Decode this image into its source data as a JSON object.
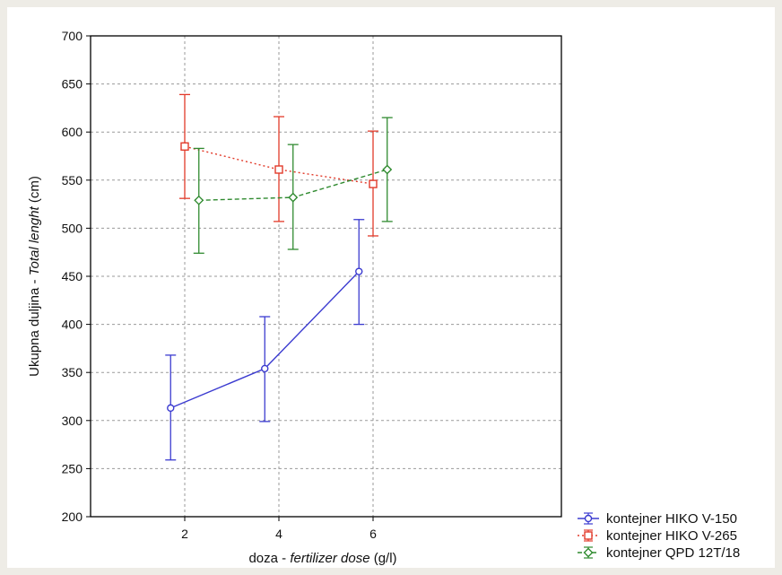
{
  "chart_data": {
    "type": "line",
    "title": "",
    "xlabel_plain": "doza - ",
    "xlabel_italic": "fertilizer dose",
    "xlabel_unit": " (g/l)",
    "ylabel_plain": "Ukupna duljina - ",
    "ylabel_italic": "Total lenght",
    "ylabel_unit": " (cm)",
    "x_ticks": [
      2,
      4,
      6
    ],
    "x_tick_labels": [
      "2",
      "4",
      "6"
    ],
    "xlim": [
      0,
      10
    ],
    "ylim": [
      200,
      700
    ],
    "y_ticks": [
      200,
      250,
      300,
      350,
      400,
      450,
      500,
      550,
      600,
      650,
      700
    ],
    "y_tick_labels": [
      "200",
      "250",
      "300",
      "350",
      "400",
      "450",
      "500",
      "550",
      "600",
      "650",
      "700"
    ],
    "grid": true,
    "legend_position": "bottom-right, outside plot",
    "series": [
      {
        "name": "kontejner HIKO V-150",
        "color": "#3b3bd0",
        "line_style": "solid",
        "marker": "circle",
        "x_offset": -0.3,
        "points": [
          {
            "x": 2,
            "y": 313,
            "lo": 259,
            "hi": 368
          },
          {
            "x": 4,
            "y": 354,
            "lo": 299,
            "hi": 408
          },
          {
            "x": 6,
            "y": 455,
            "lo": 400,
            "hi": 509
          }
        ]
      },
      {
        "name": "kontejner HIKO V-265",
        "color": "#e23a2a",
        "line_style": "dotted",
        "marker": "square",
        "x_offset": 0,
        "points": [
          {
            "x": 2,
            "y": 585,
            "lo": 531,
            "hi": 639
          },
          {
            "x": 4,
            "y": 561,
            "lo": 507,
            "hi": 616
          },
          {
            "x": 6,
            "y": 546,
            "lo": 492,
            "hi": 601
          }
        ]
      },
      {
        "name": "kontejner QPD 12T/18",
        "color": "#2f8a2f",
        "line_style": "dashed",
        "marker": "diamond",
        "x_offset": 0.3,
        "points": [
          {
            "x": 2,
            "y": 529,
            "lo": 474,
            "hi": 583
          },
          {
            "x": 4,
            "y": 532,
            "lo": 478,
            "hi": 587
          },
          {
            "x": 6,
            "y": 561,
            "lo": 507,
            "hi": 615
          }
        ]
      }
    ]
  }
}
